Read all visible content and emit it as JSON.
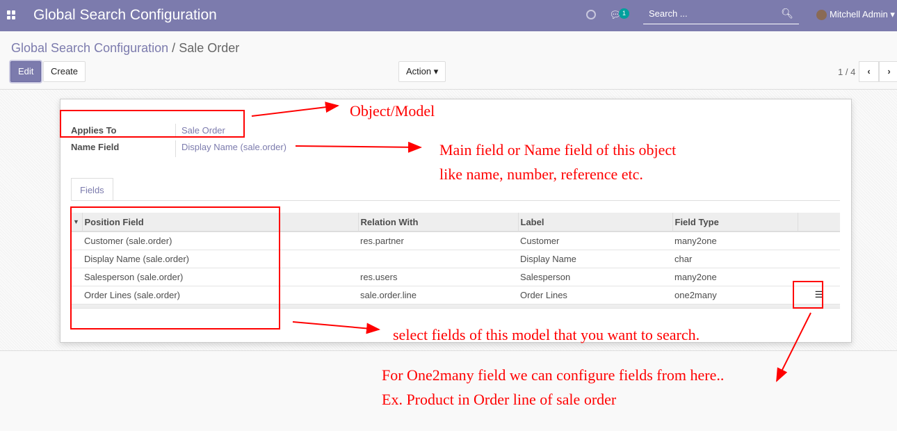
{
  "navbar": {
    "title": "Global Search Configuration",
    "chat_count": "1",
    "search_placeholder": "Search ...",
    "user": "Mitchell Admin"
  },
  "breadcrumb": {
    "parent": "Global Search Configuration",
    "separator": "/",
    "current": "Sale Order"
  },
  "toolbar": {
    "edit": "Edit",
    "create": "Create",
    "action": "Action",
    "pager": "1 / 4"
  },
  "form": {
    "applies_to_label": "Applies To",
    "applies_to": "Sale Order",
    "name_field_label": "Name Field",
    "name_field": "Display Name (sale.order)"
  },
  "tabs": [
    "Fields"
  ],
  "table": {
    "headers": [
      "Position Field",
      "Relation With",
      "Label",
      "Field Type"
    ],
    "rows": [
      [
        "Customer (sale.order)",
        "res.partner",
        "Customer",
        "many2one"
      ],
      [
        "Display Name (sale.order)",
        "",
        "Display Name",
        "char"
      ],
      [
        "Salesperson (sale.order)",
        "res.users",
        "Salesperson",
        "many2one"
      ],
      [
        "Order Lines (sale.order)",
        "sale.order.line",
        "Order Lines",
        "one2many"
      ]
    ]
  },
  "annotations": {
    "object": "Object/Model",
    "name1": "Main field or Name field of this object",
    "name2": "like name, number, reference etc.",
    "fields": "select fields of this model that you want to search.",
    "o2m1": "For One2many field we can configure fields from here..",
    "o2m2": "Ex. Product in Order line of sale order",
    "color": "#ff0000"
  }
}
